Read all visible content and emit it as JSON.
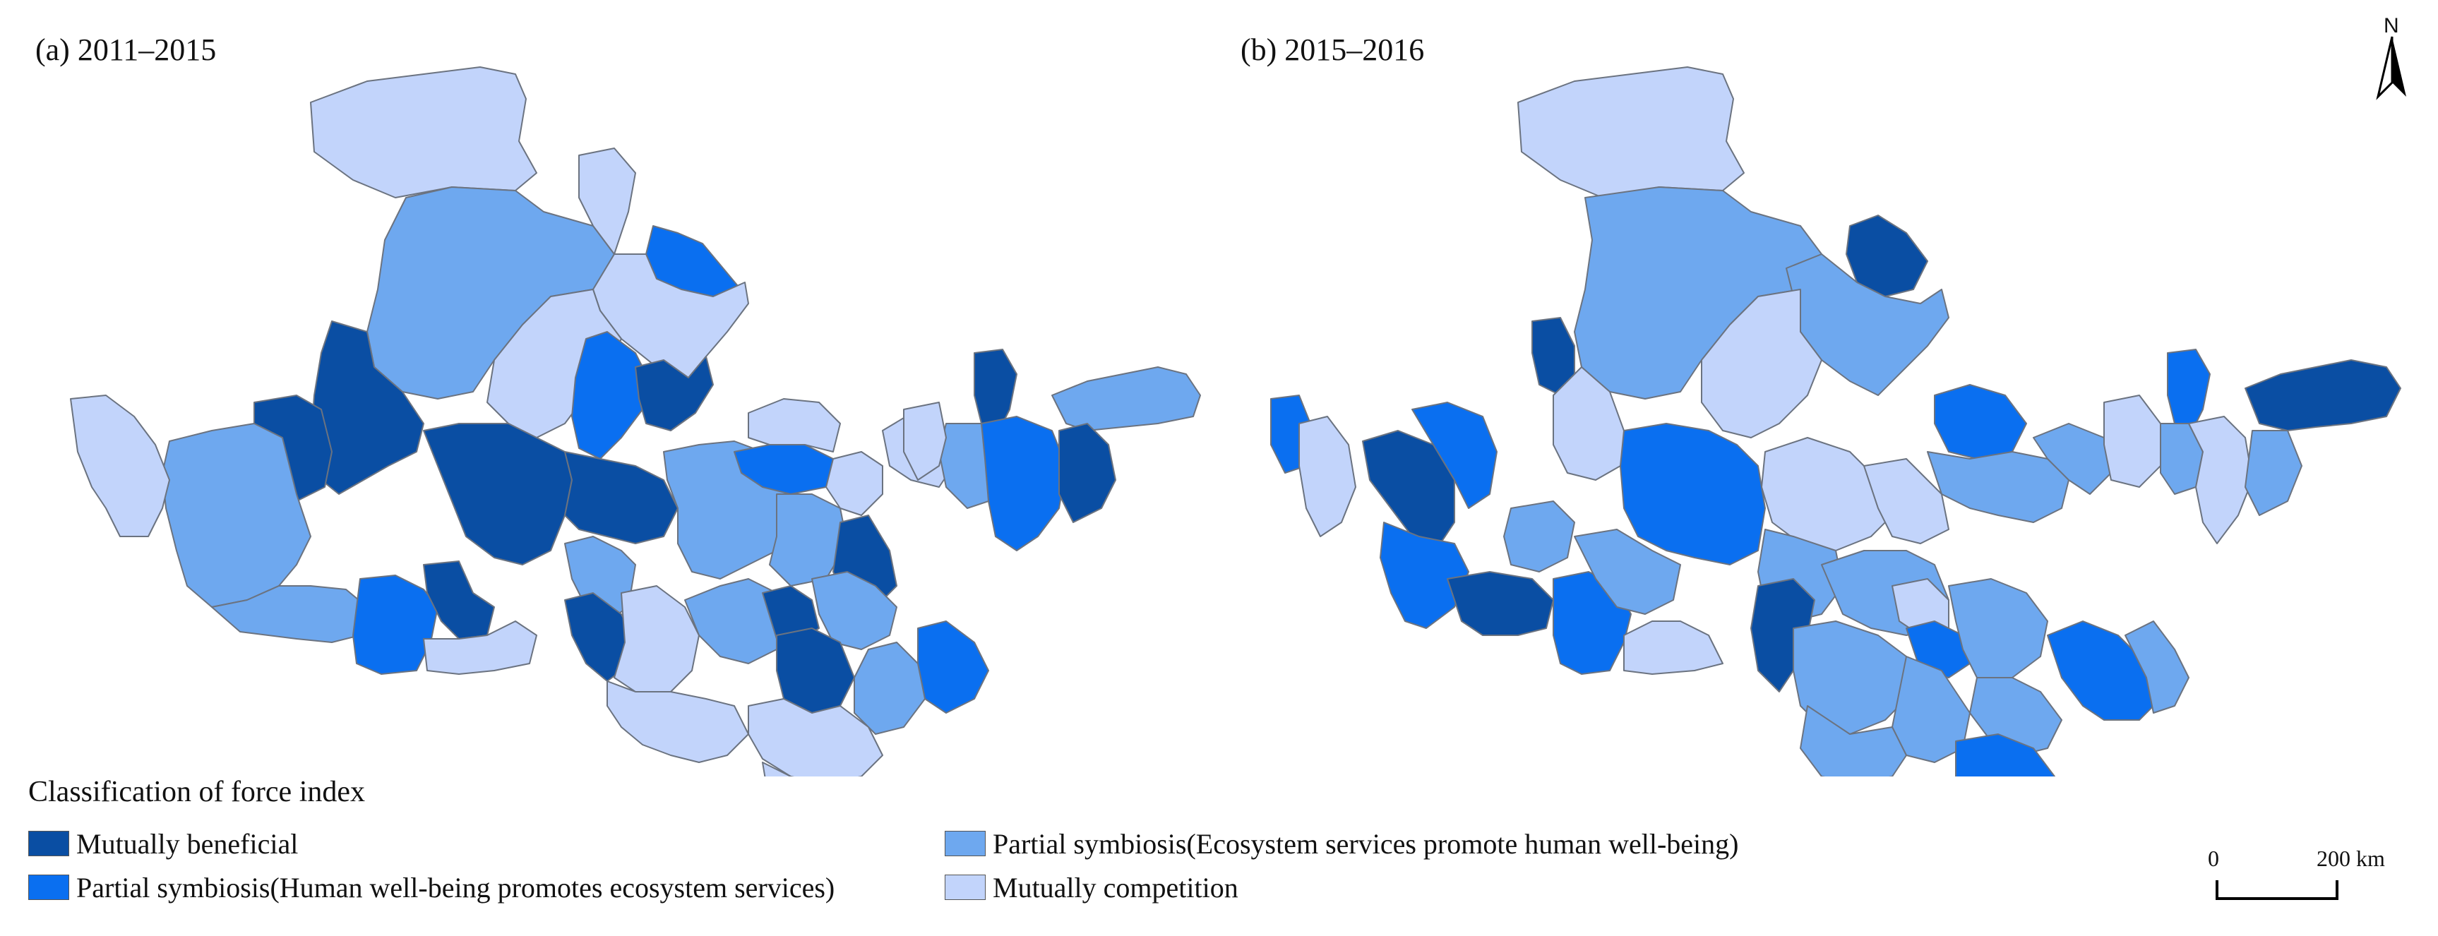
{
  "panels": [
    {
      "id": "a",
      "title": "(a) 2011–2015"
    },
    {
      "id": "b",
      "title": "(b) 2015–2016"
    }
  ],
  "north_label": "N",
  "legend": {
    "title": "Classification of force index",
    "items": [
      {
        "key": "mb",
        "label": "Mutually beneficial",
        "color": "#0a4ea3"
      },
      {
        "key": "hw",
        "label": "Partial symbiosis(Human well-being promotes ecosystem services)",
        "color": "#0a6ff0"
      },
      {
        "key": "es",
        "label": "Partial symbiosis(Ecosystem services promote human well-being)",
        "color": "#6ea8ef"
      },
      {
        "key": "mc",
        "label": "Mutually competition",
        "color": "#c2d4fb"
      }
    ]
  },
  "scale": {
    "start_label": "0",
    "end_label": "200 km"
  }
}
